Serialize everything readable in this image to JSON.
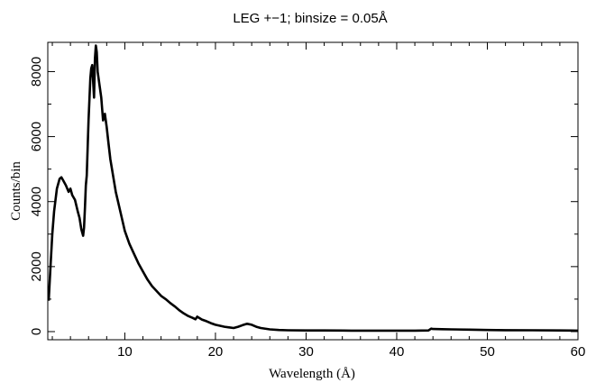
{
  "chart_data": {
    "type": "line",
    "title": "LEG +−1; binsize = 0.05Å",
    "xlabel": "Wavelength (Å)",
    "ylabel": "Counts/bin",
    "xlim": [
      1.5,
      60
    ],
    "ylim": [
      -250,
      8900
    ],
    "x_ticks": [
      10,
      20,
      30,
      40,
      50,
      60
    ],
    "y_ticks": [
      0,
      2000,
      4000,
      6000,
      8000
    ],
    "grid": false,
    "legend": "none",
    "line_color": "#000000",
    "series": [
      {
        "x": [
          1.6,
          1.8,
          2.0,
          2.2,
          2.5,
          2.8,
          3.0,
          3.2,
          3.5,
          3.8,
          4.0,
          4.2,
          4.5,
          4.8,
          5.0,
          5.2,
          5.3,
          5.4,
          5.5,
          5.6,
          5.7,
          5.8,
          6.0,
          6.2,
          6.3,
          6.4,
          6.5,
          6.6,
          6.7,
          6.8,
          6.9,
          7.0,
          7.1,
          7.2,
          7.4,
          7.6,
          7.8,
          8.0,
          8.2,
          8.4,
          8.7,
          9.0,
          9.5,
          10.0,
          10.5,
          11.0,
          11.5,
          12.0,
          12.5,
          13.0,
          13.5,
          14.0,
          14.5,
          15.0,
          15.5,
          16.0,
          16.5,
          17.0,
          17.5,
          17.8,
          18.0,
          18.2,
          18.5,
          19.0,
          19.5,
          20.0,
          20.5,
          21.0,
          21.5,
          22.0,
          22.5,
          23.0,
          23.5,
          24.0,
          24.5,
          25.0,
          26.0,
          27.0,
          28.0,
          30.0,
          32.0,
          35.0,
          38.0,
          40.0,
          42.0,
          43.5,
          43.8,
          44.0,
          45.0,
          46.0,
          48.0,
          50.0,
          52.0,
          55.0,
          58.0,
          60.0
        ],
        "y": [
          950,
          2000,
          3000,
          3700,
          4400,
          4700,
          4750,
          4650,
          4500,
          4300,
          4400,
          4200,
          4050,
          3700,
          3500,
          3150,
          3050,
          2950,
          3200,
          3800,
          4500,
          4800,
          6500,
          7800,
          8100,
          8200,
          7700,
          7200,
          8400,
          8800,
          8600,
          8000,
          7800,
          7600,
          7200,
          6500,
          6700,
          6300,
          5800,
          5300,
          4800,
          4300,
          3700,
          3100,
          2700,
          2400,
          2100,
          1850,
          1600,
          1400,
          1250,
          1100,
          1000,
          880,
          780,
          660,
          560,
          480,
          420,
          380,
          460,
          420,
          370,
          320,
          260,
          210,
          180,
          150,
          130,
          110,
          150,
          200,
          240,
          210,
          150,
          110,
          70,
          50,
          40,
          35,
          35,
          30,
          30,
          30,
          30,
          35,
          90,
          80,
          75,
          70,
          60,
          50,
          45,
          40,
          35,
          30
        ]
      }
    ]
  }
}
